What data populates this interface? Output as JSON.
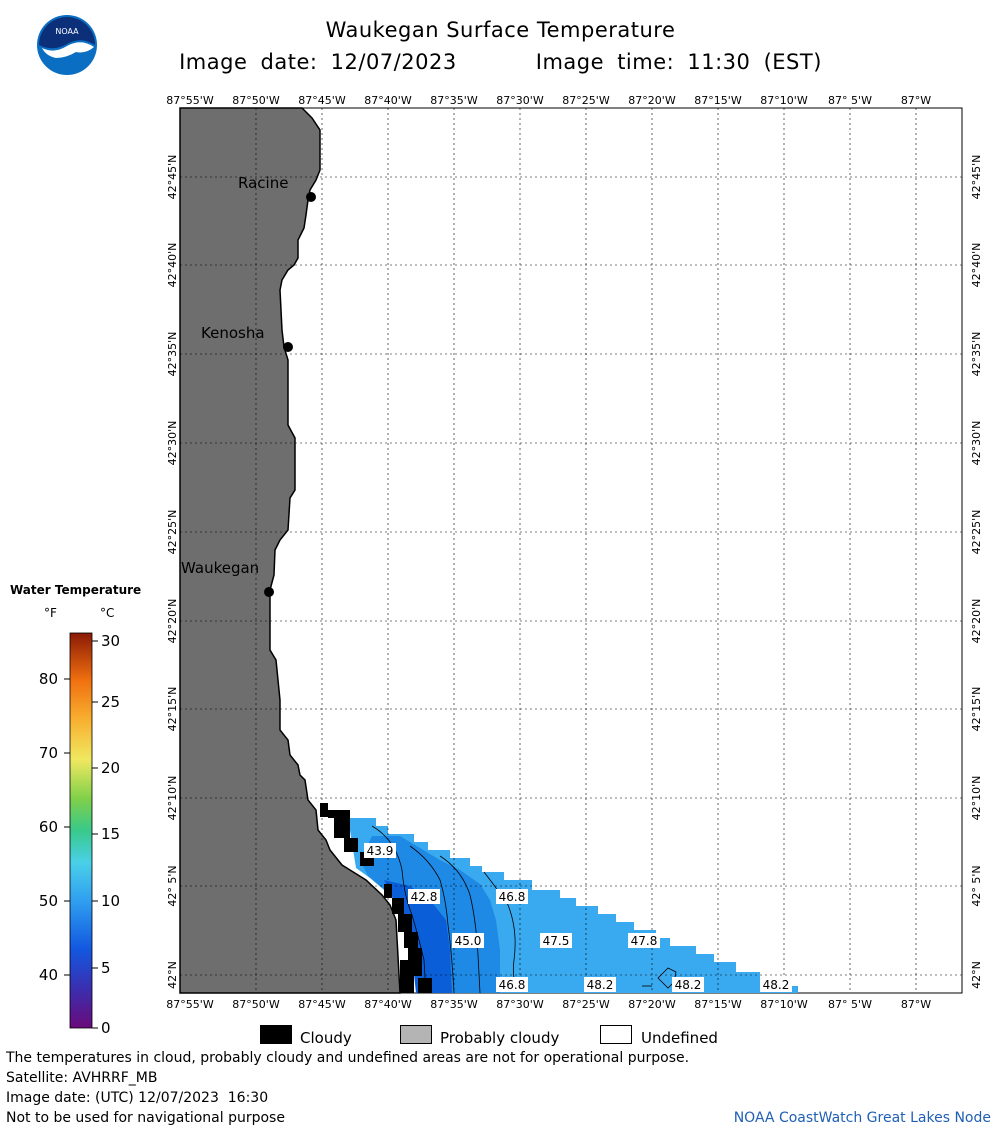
{
  "header": {
    "title": "Waukegan Surface Temperature",
    "image_date_label": "Image date: 12/07/2023",
    "image_time_label": "Image time: 11:30 (EST)"
  },
  "logo": {
    "text": "NOAA",
    "icon": "noaa-logo-icon",
    "colors": {
      "outer": "#0a6fc2",
      "inner": "#0b2f78",
      "bird": "#ffffff"
    }
  },
  "map": {
    "lon_ticks": [
      "87°55'W",
      "87°50'W",
      "87°45'W",
      "87°40'W",
      "87°35'W",
      "87°30'W",
      "87°25'W",
      "87°20'W",
      "87°15'W",
      "87°10'W",
      "87° 5'W",
      "87°W"
    ],
    "lat_ticks": [
      "42°45'N",
      "42°40'N",
      "42°35'N",
      "42°30'N",
      "42°25'N",
      "42°20'N",
      "42°15'N",
      "42°10'N",
      "42° 5'N",
      "42°N"
    ],
    "cities": [
      {
        "name": "Racine"
      },
      {
        "name": "Kenosha"
      },
      {
        "name": "Waukegan"
      }
    ],
    "isotherm_labels": [
      "43.9",
      "42.8",
      "46.8",
      "45.0",
      "47.5",
      "47.8",
      "46.8",
      "48.2",
      "48.2",
      "48.2"
    ],
    "colors": {
      "land": "#6e6e6e",
      "water_undefined": "#ffffff",
      "cloud": "#000000",
      "grid": "#000000"
    }
  },
  "legend": {
    "title": "Water Temperature",
    "unit_f": "°F",
    "unit_c": "°C",
    "f_ticks": [
      "80",
      "70",
      "60",
      "50",
      "40"
    ],
    "c_ticks": [
      "30",
      "25",
      "20",
      "15",
      "10",
      "5",
      "0"
    ]
  },
  "key": {
    "cloudy": "Cloudy",
    "probably_cloudy": "Probably cloudy",
    "undefined": "Undefined",
    "colors": {
      "cloudy": "#000000",
      "probably_cloudy": "#b4b4b4",
      "undefined": "#ffffff"
    }
  },
  "footer": {
    "note": "The temperatures in cloud, probably cloudy and undefined areas are not for operational purpose.",
    "satellite": "Satellite: AVHRRF_MB",
    "utc_date": "Image date: (UTC) 12/07/2023  16:30",
    "nav_warning": "Not to be used for navigational purpose",
    "credit": "NOAA CoastWatch Great Lakes Node"
  }
}
